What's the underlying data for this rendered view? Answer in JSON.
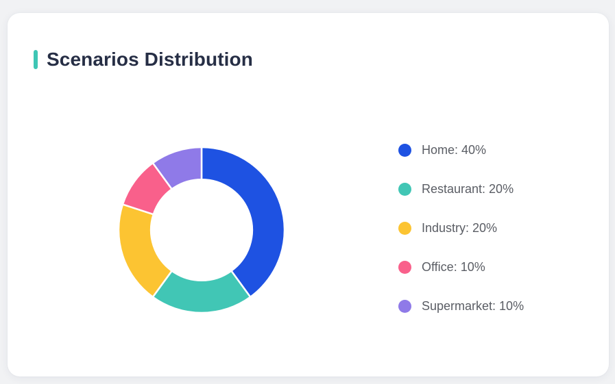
{
  "page": {
    "background_color": "#F1F2F4"
  },
  "card": {
    "title": "Scenarios Distribution",
    "accent_color": "#3EC6B5",
    "title_color": "#262E45",
    "background_color": "#FFFFFF"
  },
  "chart_data": {
    "type": "pie",
    "subtype": "donut",
    "title": "Scenarios Distribution",
    "categories": [
      "Home",
      "Restaurant",
      "Industry",
      "Office",
      "Supermarket"
    ],
    "values": [
      40,
      20,
      20,
      10,
      10
    ],
    "unit": "percent",
    "colors": [
      "#1E52E2",
      "#41C6B5",
      "#FCC432",
      "#F9608B",
      "#8F7AE8"
    ],
    "legend_labels": [
      "Home: 40%",
      "Restaurant: 20%",
      "Industry: 20%",
      "Office: 10%",
      "Supermarket: 10%"
    ],
    "legend_position": "right",
    "start_angle_deg": 0,
    "direction": "clockwise",
    "inner_radius_ratio": 0.61,
    "slice_gap_color": "#FFFFFF"
  }
}
